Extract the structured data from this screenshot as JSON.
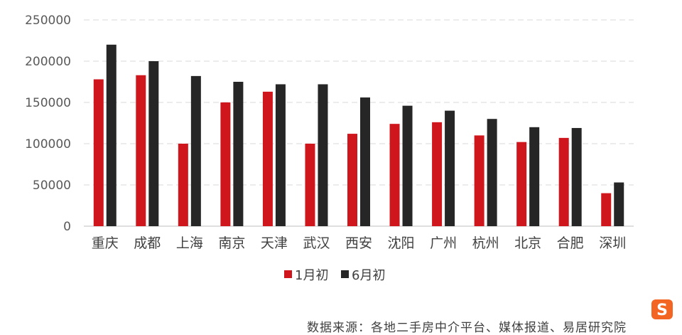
{
  "chart_data": {
    "type": "bar",
    "categories": [
      "重庆",
      "成都",
      "上海",
      "南京",
      "天津",
      "武汉",
      "西安",
      "沈阳",
      "广州",
      "杭州",
      "北京",
      "合肥",
      "深圳"
    ],
    "series": [
      {
        "name": "1月初",
        "color": "#d0161d",
        "values": [
          178000,
          183000,
          100000,
          150000,
          163000,
          100000,
          112000,
          124000,
          126000,
          110000,
          102000,
          107000,
          40000
        ]
      },
      {
        "name": "6月初",
        "color": "#262626",
        "values": [
          220000,
          200000,
          182000,
          175000,
          172000,
          172000,
          156000,
          146000,
          140000,
          130000,
          120000,
          119000,
          53000
        ]
      }
    ],
    "ylim": [
      0,
      250000
    ],
    "yticks": [
      0,
      50000,
      100000,
      150000,
      200000,
      250000
    ],
    "ytick_labels": [
      "0",
      "50000",
      "100000",
      "150000",
      "200000",
      "250000"
    ],
    "grid": true,
    "legend_position": "bottom"
  },
  "source_note": "数据来源：各地二手房中介平台、媒体报道、易居研究院",
  "logo_icon": "sogou-s-logo-icon"
}
